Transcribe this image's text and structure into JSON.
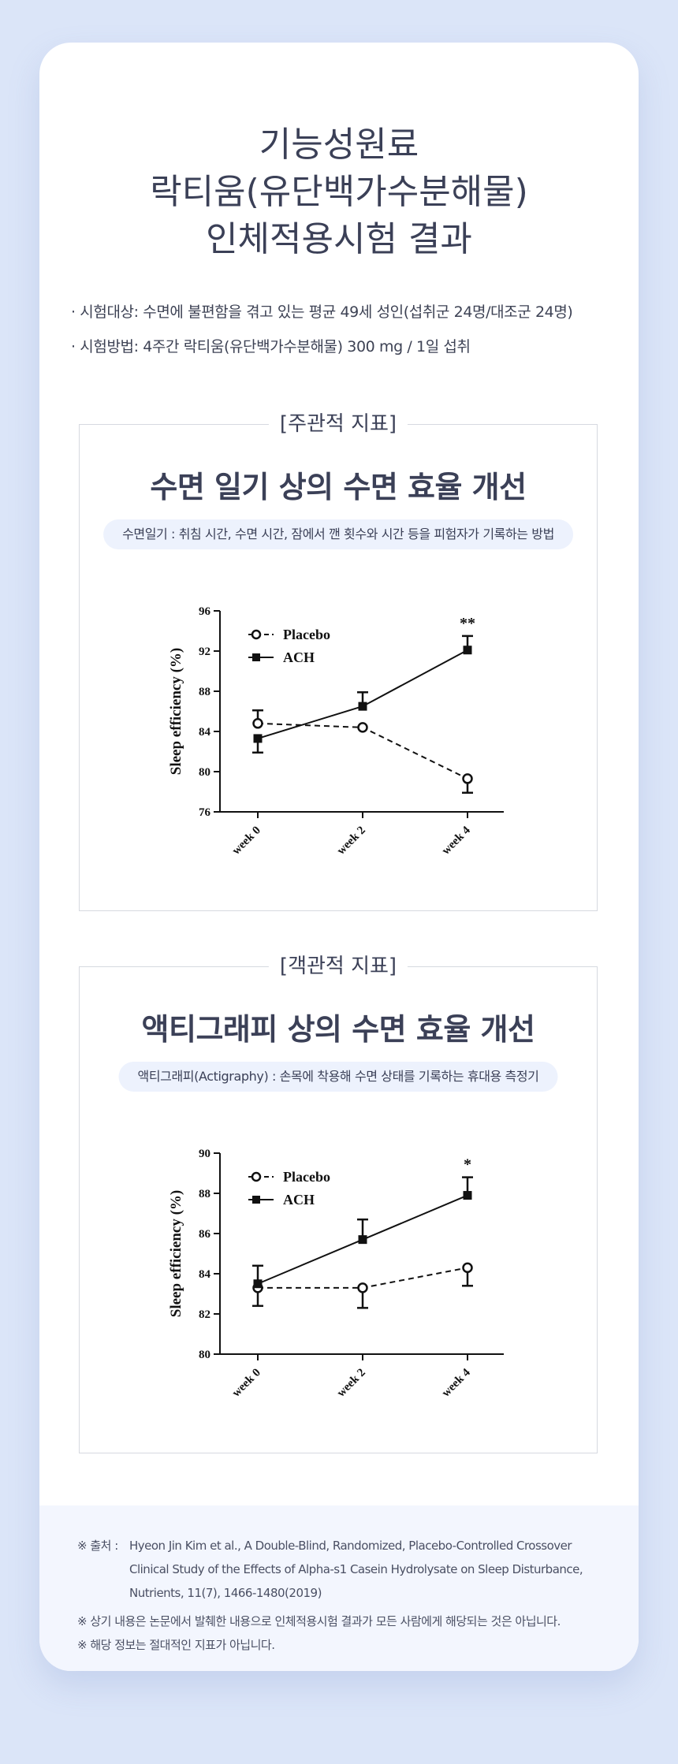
{
  "title_lines": [
    "기능성원료",
    "락티움(유단백가수분해물)",
    "인체적용시험 결과"
  ],
  "intro": [
    "· 시험대상: 수면에 불편함을 겪고 있는 평균 49세 성인(섭취군 24명/대조군 24명)",
    "· 시험방법: 4주간 락티움(유단백가수분해물) 300 mg / 1일 섭취"
  ],
  "sections": [
    {
      "tag": "[주관적 지표]",
      "title": "수면 일기 상의 수면 효율 개선",
      "description": "수면일기 : 취침 시간, 수면 시간, 잠에서 깬 횟수와 시간 등을 피험자가 기록하는 방법"
    },
    {
      "tag": "[객관적 지표]",
      "title": "액티그래피 상의 수면 효율 개선",
      "description": "액티그래피(Actigraphy) : 손목에 착용해 수면 상태를 기록하는 휴대용 측정기"
    }
  ],
  "chart_data": [
    {
      "type": "line",
      "categories": [
        "week 0",
        "week 2",
        "week 4"
      ],
      "ylabel": "Sleep efficiency (%)",
      "xlabel": "",
      "ylim": [
        76,
        96
      ],
      "yticks": [
        "76",
        "80",
        "84",
        "88",
        "92",
        "96"
      ],
      "legend_position": "top-left",
      "series": [
        {
          "name": "Placebo",
          "values": [
            84.8,
            84.4,
            79.3
          ],
          "err_up": [
            1.3,
            0,
            0
          ],
          "err_down": [
            0,
            0,
            1.4
          ],
          "color": "#111111",
          "dashed": true,
          "marker": "circle"
        },
        {
          "name": "ACH",
          "values": [
            83.3,
            86.5,
            92.1
          ],
          "err_up": [
            0,
            1.4,
            1.4
          ],
          "err_down": [
            1.4,
            0,
            0
          ],
          "color": "#111111",
          "dashed": false,
          "marker": "square"
        }
      ],
      "annotations": [
        {
          "category_index": 2,
          "text": "**"
        }
      ]
    },
    {
      "type": "line",
      "categories": [
        "week 0",
        "week 2",
        "week 4"
      ],
      "ylabel": "Sleep efficiency (%)",
      "xlabel": "",
      "ylim": [
        80,
        90
      ],
      "yticks": [
        "80",
        "82",
        "84",
        "86",
        "88",
        "90"
      ],
      "legend_position": "top-left",
      "series": [
        {
          "name": "Placebo",
          "values": [
            83.3,
            83.3,
            84.3
          ],
          "err_up": [
            0,
            0,
            0
          ],
          "err_down": [
            0.9,
            1.0,
            0.9
          ],
          "color": "#111111",
          "dashed": true,
          "marker": "circle"
        },
        {
          "name": "ACH",
          "values": [
            83.5,
            85.7,
            87.9
          ],
          "err_up": [
            0.9,
            1.0,
            0.9
          ],
          "err_down": [
            0,
            0,
            0
          ],
          "color": "#111111",
          "dashed": false,
          "marker": "square"
        }
      ],
      "annotations": [
        {
          "category_index": 2,
          "text": "*"
        }
      ]
    }
  ],
  "footer": {
    "source_mark": "※ 출처 :",
    "source_text": "Hyeon Jin Kim et al., A Double-Blind, Randomized, Placebo-Controlled Crossover Clinical Study of the Effects of Alpha-s1 Casein Hydrolysate on Sleep Disturbance, Nutrients, 11(7), 1466-1480(2019)",
    "notes": [
      "※ 상기 내용은 논문에서 발췌한 내용으로 인체적용시험 결과가 모든 사람에게 해당되는 것은 아닙니다.",
      "※ 해당 정보는 절대적인 지표가 아닙니다."
    ]
  }
}
